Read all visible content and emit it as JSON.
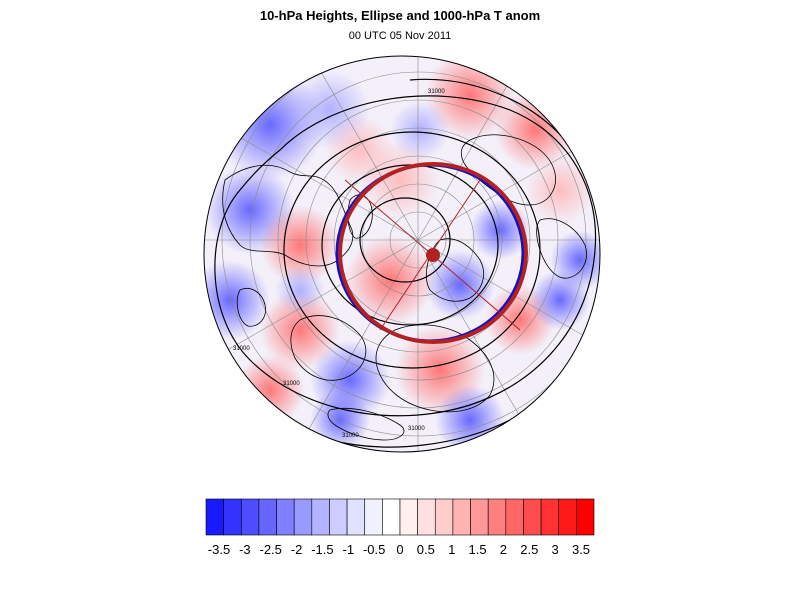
{
  "title": "10-hPa Heights, Ellipse and 1000-hPa T anom",
  "subtitle": "00 UTC 05 Nov 2011",
  "map": {
    "projection": "polar-stereographic-north",
    "contour_labels": [
      "31000",
      "31000",
      "31000",
      "31000",
      "31000"
    ],
    "ellipse_color": "#b22222",
    "ellipse_inner_color": "#1010c8",
    "coast_color": "#000000",
    "grid_color": "#8a8a8a"
  },
  "colorbar": {
    "labels": [
      "-3.5",
      "-3",
      "-2.5",
      "-2",
      "-1.5",
      "-1",
      "-0.5",
      "0",
      "0.5",
      "1",
      "1.5",
      "2",
      "2.5",
      "3",
      "3.5"
    ],
    "colors": [
      "#1a1aff",
      "#3333ff",
      "#4d4dff",
      "#6666ff",
      "#7f7fff",
      "#9999ff",
      "#b3b3ff",
      "#ccccff",
      "#e0e0ff",
      "#f0f0ff",
      "#ffffff",
      "#fff0f0",
      "#ffe0e0",
      "#ffcccc",
      "#ffb3b3",
      "#ff9999",
      "#ff7f7f",
      "#ff6666",
      "#ff4d4d",
      "#ff3333",
      "#ff1a1a",
      "#ff0000"
    ],
    "colormap": "blue-white-red"
  }
}
